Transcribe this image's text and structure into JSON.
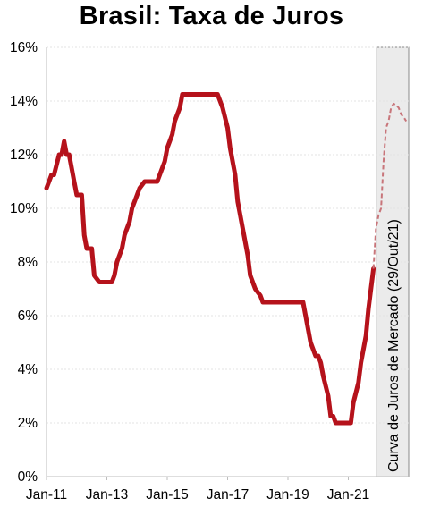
{
  "chart_data": {
    "type": "line",
    "title": "Brasil: Taxa de Juros",
    "xlabel": "",
    "ylabel": "",
    "ylim": [
      0,
      16
    ],
    "xlim": [
      "2011-01",
      "2022-12"
    ],
    "y_ticks": [
      "0%",
      "2%",
      "4%",
      "6%",
      "8%",
      "10%",
      "12%",
      "14%",
      "16%"
    ],
    "x_ticks": [
      "Jan-11",
      "Jan-13",
      "Jan-15",
      "Jan-17",
      "Jan-19",
      "Jan-21"
    ],
    "grid": true,
    "colors": {
      "historical": "#b5121b",
      "forecast": "#c8757a",
      "band_fill": "#ebebeb",
      "band_border": "#888888"
    },
    "forecast_band": {
      "start": "2021-11",
      "end": "2022-12",
      "label": "Curva de Juros de Mercado (29/Out/21)"
    },
    "series": [
      {
        "style": "solid",
        "x": [
          "2011-01",
          "2011-03",
          "2011-04",
          "2011-06",
          "2011-07",
          "2011-08",
          "2011-09",
          "2011-10",
          "2011-12",
          "2012-01",
          "2012-03",
          "2012-04",
          "2012-05",
          "2012-07",
          "2012-08",
          "2012-10",
          "2012-11",
          "2013-03",
          "2013-04",
          "2013-05",
          "2013-07",
          "2013-08",
          "2013-10",
          "2013-11",
          "2014-01",
          "2014-02",
          "2014-04",
          "2014-09",
          "2014-10",
          "2014-12",
          "2015-01",
          "2015-03",
          "2015-04",
          "2015-06",
          "2015-07",
          "2016-09",
          "2016-10",
          "2016-11",
          "2017-01",
          "2017-02",
          "2017-04",
          "2017-05",
          "2017-07",
          "2017-09",
          "2017-10",
          "2017-12",
          "2018-02",
          "2018-03",
          "2018-05",
          "2019-07",
          "2019-08",
          "2019-09",
          "2019-10",
          "2019-12",
          "2020-01",
          "2020-02",
          "2020-03",
          "2020-05",
          "2020-06",
          "2020-07",
          "2020-08",
          "2021-02",
          "2021-03",
          "2021-05",
          "2021-06",
          "2021-08",
          "2021-09",
          "2021-11"
        ],
        "values": [
          10.75,
          11.25,
          11.25,
          12.0,
          12.0,
          12.5,
          12.0,
          12.0,
          11.0,
          10.5,
          10.5,
          9.0,
          8.5,
          8.5,
          7.5,
          7.25,
          7.25,
          7.25,
          7.5,
          8.0,
          8.5,
          9.0,
          9.5,
          10.0,
          10.5,
          10.75,
          11.0,
          11.0,
          11.25,
          11.75,
          12.25,
          12.75,
          13.25,
          13.75,
          14.25,
          14.25,
          14.0,
          13.75,
          13.0,
          12.25,
          11.25,
          10.25,
          9.25,
          8.25,
          7.5,
          7.0,
          6.75,
          6.5,
          6.5,
          6.5,
          6.0,
          5.5,
          5.0,
          4.5,
          4.5,
          4.25,
          3.75,
          3.0,
          2.25,
          2.25,
          2.0,
          2.0,
          2.75,
          3.5,
          4.25,
          5.25,
          6.25,
          7.75
        ]
      },
      {
        "style": "dashed",
        "x": [
          "2021-11",
          "2021-12",
          "2022-01",
          "2022-02",
          "2022-03",
          "2022-04",
          "2022-05",
          "2022-06",
          "2022-07",
          "2022-08",
          "2022-09",
          "2022-10",
          "2022-11",
          "2022-12"
        ],
        "values": [
          7.75,
          9.25,
          9.75,
          10.0,
          11.75,
          13.0,
          13.25,
          13.75,
          13.9,
          13.85,
          13.75,
          13.5,
          13.4,
          13.25
        ]
      }
    ]
  }
}
